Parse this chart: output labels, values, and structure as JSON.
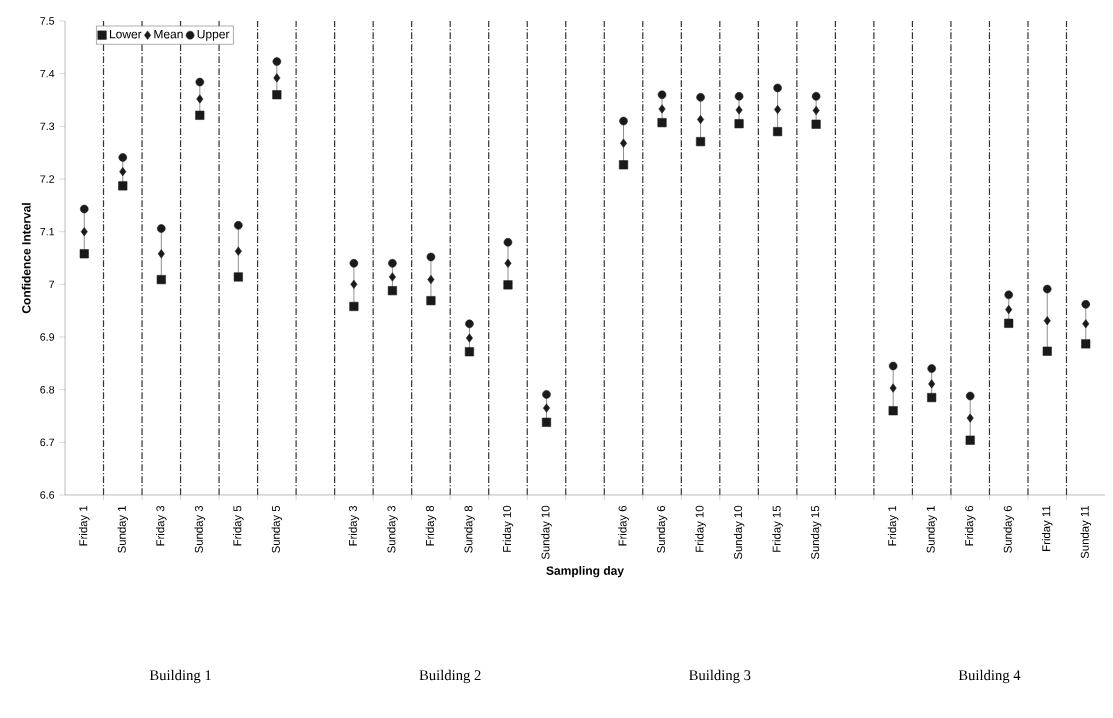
{
  "chart_data": {
    "type": "scatter",
    "ylabel": "Confidence Interval",
    "xlabel": "Sampling day",
    "categories": [
      "Friday 1",
      "Sunday 1",
      "Friday 3",
      "Sunday 3",
      "Friday 5",
      "Sunday 5",
      null,
      "Friday 3",
      "Sunday 3",
      "Friday 8",
      "Sunday 8",
      "Friday 10",
      "Sunday 10",
      null,
      "Friday 6",
      "Sunday 6",
      "Friday 10",
      "Sunday 10",
      "Friday 15",
      "Sunday 15",
      null,
      "Friday 1",
      "Sunday 1",
      "Friday 6",
      "Sunday 6",
      "Friday 11",
      "Sunday 11"
    ],
    "series": [
      {
        "name": "Lower",
        "color": "#1a1a1a",
        "marker": "square",
        "values": [
          7.058,
          7.187,
          7.009,
          7.321,
          7.014,
          7.36,
          null,
          6.958,
          6.988,
          6.969,
          6.872,
          6.999,
          6.738,
          null,
          7.227,
          7.307,
          7.271,
          7.305,
          7.29,
          7.304,
          null,
          6.76,
          6.785,
          6.704,
          6.926,
          6.873,
          6.887
        ]
      },
      {
        "name": "Mean",
        "color": "#1a1a1a",
        "marker": "diamond",
        "values": [
          7.1,
          7.214,
          7.058,
          7.352,
          7.063,
          7.392,
          null,
          7.0,
          7.014,
          7.009,
          6.898,
          7.04,
          6.765,
          null,
          7.268,
          7.333,
          7.313,
          7.331,
          7.332,
          7.33,
          null,
          6.803,
          6.811,
          6.746,
          6.952,
          6.931,
          6.925
        ]
      },
      {
        "name": "Upper",
        "color": "#1a1a1a",
        "marker": "circle",
        "values": [
          7.143,
          7.241,
          7.106,
          7.384,
          7.112,
          7.423,
          null,
          7.04,
          7.04,
          7.052,
          6.925,
          7.08,
          6.791,
          null,
          7.31,
          7.36,
          7.355,
          7.357,
          7.373,
          7.357,
          null,
          6.845,
          6.84,
          6.788,
          6.98,
          6.991,
          6.962
        ]
      }
    ],
    "ylim": [
      6.6,
      7.5
    ],
    "yticks": [
      6.6,
      6.7,
      6.8,
      6.9,
      7,
      7.1,
      7.2,
      7.3,
      7.4,
      7.5
    ],
    "grid": "x",
    "legend": "top left",
    "annotations": [
      "Building 1",
      "Building 2",
      "Building 3",
      "Building 4"
    ]
  }
}
